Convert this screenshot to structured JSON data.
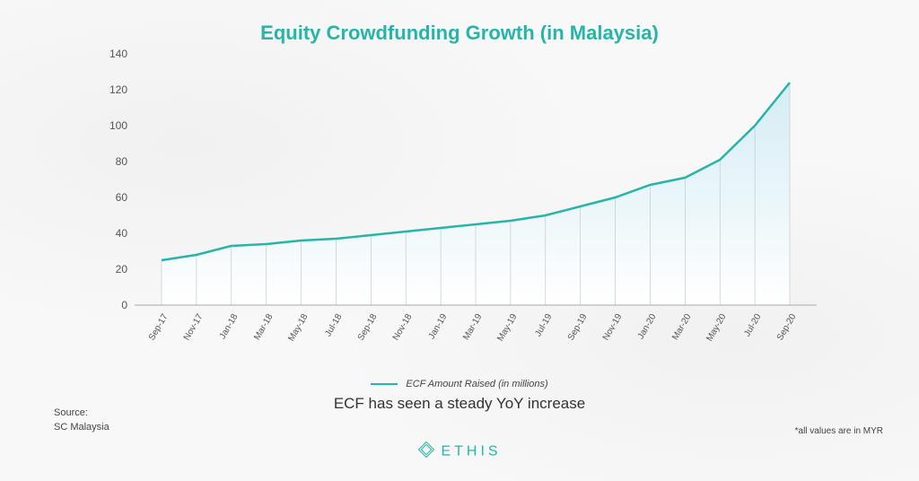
{
  "chart": {
    "type": "line",
    "title": "Equity Crowdfunding Growth (in Malaysia)",
    "title_color": "#26b5a8",
    "title_fontsize": 22,
    "legend_label": "ECF Amount Raised (in millions)",
    "subtitle": "ECF has seen a steady YoY increase",
    "line_color": "#26b5a8",
    "line_width": 2.5,
    "drop_line_color": "#b8c5c5",
    "drop_line_width": 0.6,
    "fill_gradient_top": "#d4ecf4",
    "fill_gradient_bottom": "#ffffff",
    "grid_color": "#e8e8e8",
    "background_color": "#ffffff",
    "ylim": [
      0,
      140
    ],
    "ytick_step": 20,
    "yticks": [
      0,
      20,
      40,
      60,
      80,
      100,
      120,
      140
    ],
    "x_labels": [
      "Sep-17",
      "Nov-17",
      "Jan-18",
      "Mar-18",
      "May-18",
      "Jul-18",
      "Sep-18",
      "Nov-18",
      "Jan-19",
      "Mar-19",
      "May-19",
      "Jul-19",
      "Sep-19",
      "Nov-19",
      "Jan-20",
      "Mar-20",
      "May-20",
      "Jul-20",
      "Sep-20"
    ],
    "values": [
      25,
      28,
      33,
      34,
      36,
      37,
      39,
      41,
      43,
      45,
      47,
      50,
      55,
      60,
      67,
      71,
      81,
      100,
      124
    ],
    "x_label_fontsize": 10,
    "y_label_fontsize": 12
  },
  "source": {
    "label": "Source:",
    "value": "SC Malaysia"
  },
  "disclaimer": "*all values are in MYR",
  "brand": {
    "name": "ETHIS",
    "color": "#26b5a8"
  }
}
